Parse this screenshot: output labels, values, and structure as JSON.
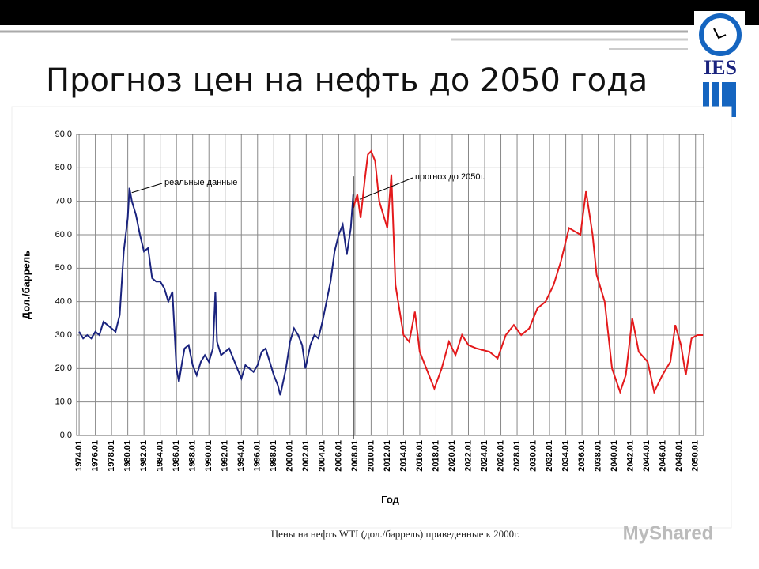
{
  "chart_data": {
    "type": "line",
    "title": "Прогноз цен на нефть до 2050 года",
    "caption": "Цены на нефть WTI (дол./баррель) приведенные к 2000г.",
    "watermark": "MyShared",
    "logo_text": "IES",
    "x_label": "Год",
    "y_label": "Дол./баррель",
    "grid": true,
    "xlim": [
      1973.7,
      2051
    ],
    "xticks": [
      {
        "value": 1974,
        "label": "1974.01"
      },
      {
        "value": 1976,
        "label": "1976.01"
      },
      {
        "value": 1978,
        "label": "1978.01"
      },
      {
        "value": 1980,
        "label": "1980.01"
      },
      {
        "value": 1982,
        "label": "1982.01"
      },
      {
        "value": 1984,
        "label": "1984.01"
      },
      {
        "value": 1986,
        "label": "1986.01"
      },
      {
        "value": 1988,
        "label": "1988.01"
      },
      {
        "value": 1990,
        "label": "1990.01"
      },
      {
        "value": 1992,
        "label": "1992.01"
      },
      {
        "value": 1994,
        "label": "1994.01"
      },
      {
        "value": 1996,
        "label": "1996.01"
      },
      {
        "value": 1998,
        "label": "1998.01"
      },
      {
        "value": 2000,
        "label": "2000.01"
      },
      {
        "value": 2002,
        "label": "2002.01"
      },
      {
        "value": 2004,
        "label": "2004.01"
      },
      {
        "value": 2006,
        "label": "2006.01"
      },
      {
        "value": 2008,
        "label": "2008.01"
      },
      {
        "value": 2010,
        "label": "2010.01"
      },
      {
        "value": 2012,
        "label": "2012.01"
      },
      {
        "value": 2014,
        "label": "2014.01"
      },
      {
        "value": 2016,
        "label": "2016.01"
      },
      {
        "value": 2018,
        "label": "2018.01"
      },
      {
        "value": 2020,
        "label": "2020.01"
      },
      {
        "value": 2022,
        "label": "2022.01"
      },
      {
        "value": 2024,
        "label": "2024.01"
      },
      {
        "value": 2026,
        "label": "2026.01"
      },
      {
        "value": 2028,
        "label": "2028.01"
      },
      {
        "value": 2030,
        "label": "2030.01"
      },
      {
        "value": 2032,
        "label": "2032.01"
      },
      {
        "value": 2034,
        "label": "2034.01"
      },
      {
        "value": 2036,
        "label": "2036.01"
      },
      {
        "value": 2038,
        "label": "2038.01"
      },
      {
        "value": 2040,
        "label": "2040.01"
      },
      {
        "value": 2042,
        "label": "2042.01"
      },
      {
        "value": 2044,
        "label": "2044.01"
      },
      {
        "value": 2046,
        "label": "2046.01"
      },
      {
        "value": 2048,
        "label": "2048.01"
      },
      {
        "value": 2050,
        "label": "2050.01"
      }
    ],
    "ylim": [
      0,
      90
    ],
    "yticks": [
      {
        "value": 0,
        "label": "0,0"
      },
      {
        "value": 10,
        "label": "10,0"
      },
      {
        "value": 20,
        "label": "20,0"
      },
      {
        "value": 30,
        "label": "30,0"
      },
      {
        "value": 40,
        "label": "40,0"
      },
      {
        "value": 50,
        "label": "50,0"
      },
      {
        "value": 60,
        "label": "60,0"
      },
      {
        "value": 70,
        "label": "70,0"
      },
      {
        "value": 80,
        "label": "80,0"
      },
      {
        "value": 90,
        "label": "90,0"
      }
    ],
    "series": [
      {
        "name": "реальные данные",
        "color": "#1a237e",
        "x": [
          1974,
          1974.5,
          1975,
          1975.5,
          1976,
          1976.5,
          1977,
          1977.5,
          1978,
          1978.5,
          1979,
          1979.5,
          1980,
          1980.2,
          1980.5,
          1981,
          1981.5,
          1982,
          1982.5,
          1983,
          1983.5,
          1984,
          1984.5,
          1985,
          1985.5,
          1986,
          1986.3,
          1986.7,
          1987,
          1987.5,
          1988,
          1988.5,
          1989,
          1989.5,
          1990,
          1990.5,
          1990.8,
          1991,
          1991.5,
          1992,
          1992.5,
          1993,
          1993.5,
          1994,
          1994.5,
          1995,
          1995.5,
          1996,
          1996.5,
          1997,
          1997.5,
          1998,
          1998.5,
          1998.8,
          1999.5,
          2000,
          2000.5,
          2001,
          2001.5,
          2001.9,
          2002.5,
          2003,
          2003.5,
          2004,
          2004.5,
          2005,
          2005.5,
          2006,
          2006.5,
          2007,
          2007.5,
          2007.8
        ],
        "values": [
          31,
          29,
          30,
          29,
          31,
          30,
          34,
          33,
          32,
          31,
          36,
          55,
          65,
          74,
          70,
          66,
          60,
          55,
          56,
          47,
          46,
          46,
          44,
          40,
          43,
          20,
          16,
          22,
          26,
          27,
          21,
          18,
          22,
          24,
          22,
          26,
          43,
          28,
          24,
          25,
          26,
          23,
          20,
          17,
          21,
          20,
          19,
          21,
          25,
          26,
          22,
          18,
          15,
          12,
          20,
          28,
          32,
          30,
          27,
          20,
          27,
          30,
          29,
          34,
          40,
          46,
          55,
          60,
          63,
          54,
          62,
          72
        ]
      },
      {
        "name": "прогноз до 2050г.",
        "color": "#e41a1c",
        "x": [
          2007.8,
          2008.3,
          2008.7,
          2009.2,
          2009.6,
          2010,
          2010.5,
          2011,
          2011.5,
          2012,
          2012.5,
          2013,
          2014,
          2014.7,
          2015.4,
          2016,
          2016.8,
          2017.8,
          2018.7,
          2019.6,
          2020.4,
          2021.2,
          2022,
          2023,
          2024.6,
          2025.6,
          2026.6,
          2027.6,
          2028.5,
          2029.5,
          2030.5,
          2031.5,
          2032.5,
          2033.4,
          2034.4,
          2035.8,
          2036.5,
          2037.3,
          2037.8,
          2038.8,
          2039.7,
          2040.7,
          2041.4,
          2042.2,
          2043,
          2044.1,
          2044.9,
          2045.9,
          2046.9,
          2047.5,
          2048.2,
          2048.8,
          2049.5,
          2050.2,
          2050.9
        ],
        "values": [
          68,
          72,
          65,
          76,
          84,
          85,
          82,
          70,
          66,
          62,
          78,
          45,
          30,
          28,
          37,
          25,
          20,
          14,
          20,
          28,
          24,
          30,
          27,
          26,
          25,
          23,
          30,
          33,
          30,
          32,
          38,
          40,
          45,
          52,
          62,
          60,
          73,
          60,
          48,
          40,
          20,
          13,
          18,
          35,
          25,
          22,
          13,
          18,
          22,
          33,
          27,
          18,
          29,
          30,
          30
        ]
      }
    ]
  }
}
